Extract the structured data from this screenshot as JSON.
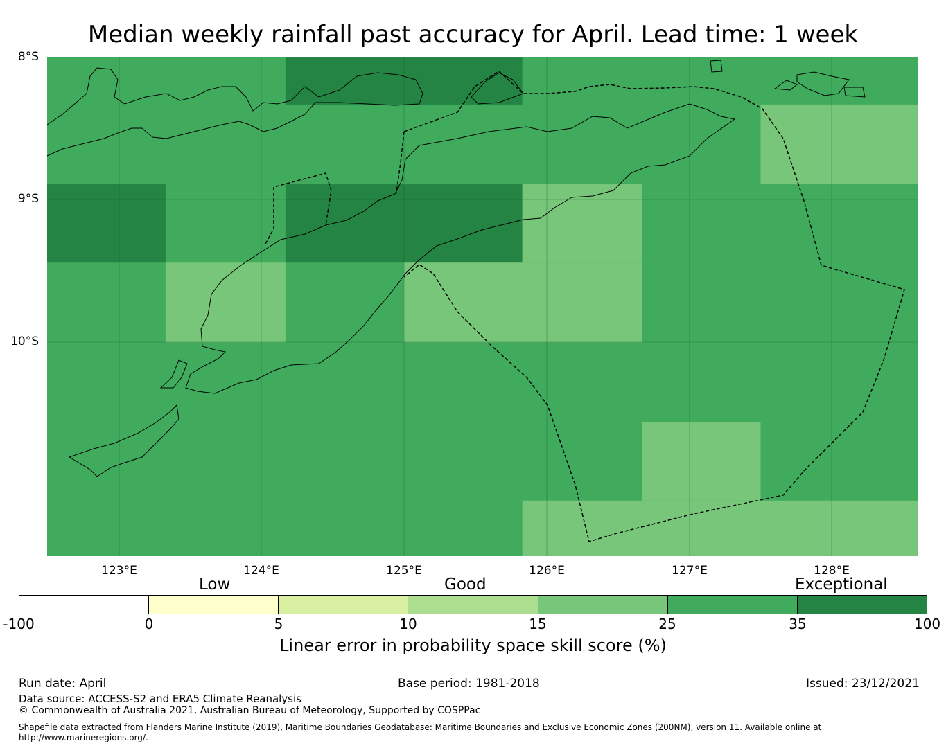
{
  "title": "Median weekly rainfall past accuracy for April. Lead time: 1 week",
  "colors": {
    "very_good": "#41ab5d",
    "exceptional": "#238443",
    "good": "#78c679",
    "light_good": "#addd8e",
    "low_mid": "#d9f0a3",
    "low": "#ffffcc",
    "none": "#ffffff"
  },
  "map": {
    "lat_labels": [
      "8°S",
      "9°S",
      "10°S"
    ],
    "lon_labels": [
      "123°E",
      "124°E",
      "125°E",
      "126°E",
      "127°E",
      "128°E"
    ],
    "cells": [
      {
        "lon": [
          124.17,
          125.83
        ],
        "lat": [
          -8.0,
          -8.33
        ],
        "category": "exceptional"
      },
      {
        "lon": [
          122.5,
          123.33
        ],
        "lat": [
          -8.89,
          -9.44
        ],
        "category": "exceptional"
      },
      {
        "lon": [
          124.17,
          125.83
        ],
        "lat": [
          -8.89,
          -9.44
        ],
        "category": "exceptional"
      },
      {
        "lon": [
          127.5,
          128.6
        ],
        "lat": [
          -8.33,
          -8.89
        ],
        "category": "good"
      },
      {
        "lon": [
          125.83,
          126.67
        ],
        "lat": [
          -8.89,
          -9.44
        ],
        "category": "good"
      },
      {
        "lon": [
          123.33,
          124.17
        ],
        "lat": [
          -9.44,
          -10.0
        ],
        "category": "good"
      },
      {
        "lon": [
          125.0,
          126.67
        ],
        "lat": [
          -9.44,
          -10.0
        ],
        "category": "good"
      },
      {
        "lon": [
          126.67,
          127.5
        ],
        "lat": [
          -10.56,
          -11.11
        ],
        "category": "good"
      },
      {
        "lon": [
          125.83,
          128.6
        ],
        "lat": [
          -11.11,
          -11.5
        ],
        "category": "good"
      }
    ]
  },
  "legend": {
    "categories": [
      "Low",
      "Good",
      "Exceptional"
    ],
    "ticks": [
      "-100",
      "0",
      "5",
      "10",
      "15",
      "25",
      "35",
      "100"
    ],
    "segments": [
      "#ffffff",
      "#ffffcc",
      "#d9f0a3",
      "#addd8e",
      "#78c679",
      "#41ab5d",
      "#238443"
    ],
    "title": "Linear error in probability space skill score (%)"
  },
  "footer": {
    "run_date": "Run date: April",
    "base_period": "Base period: 1981-2018",
    "issued": "Issued: 23/12/2021",
    "data_source": "Data source: ACCESS-S2 and ERA5 Climate Reanalysis",
    "copyright": "© Commonwealth of Australia 2021, Australian Bureau of Meteorology, Supported by COSPPac",
    "shapefile": "Shapefile data extracted from Flanders Marine Institute (2019), Maritime Boundaries Geodatabase: Maritime Boundaries and Exclusive Economic Zones (200NM), version 11. Available online at http://www.marineregions.org/."
  }
}
